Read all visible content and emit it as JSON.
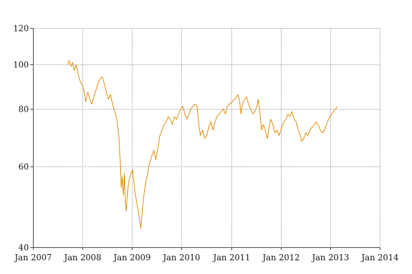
{
  "chart_data": {
    "type": "line",
    "title": "",
    "xlabel": "",
    "ylabel": "",
    "y_scale": "log",
    "grid": true,
    "line_color": "#e08a00",
    "xlim": [
      "2007-01-01",
      "2014-01-01"
    ],
    "ylim": [
      40,
      120
    ],
    "x_ticks": [
      {
        "label": "Jan 2007",
        "date": "2007-01-01"
      },
      {
        "label": "Jan 2008",
        "date": "2008-01-01"
      },
      {
        "label": "Jan 2009",
        "date": "2009-01-01"
      },
      {
        "label": "Jan 2010",
        "date": "2010-01-01"
      },
      {
        "label": "Jan 2011",
        "date": "2011-01-01"
      },
      {
        "label": "Jan 2012",
        "date": "2012-01-01"
      },
      {
        "label": "Jan 2013",
        "date": "2013-01-01"
      },
      {
        "label": "Jan 2014",
        "date": "2014-01-01"
      }
    ],
    "y_ticks": [
      {
        "label": "40",
        "value": 40
      },
      {
        "label": "60",
        "value": 60
      },
      {
        "label": "80",
        "value": 80
      },
      {
        "label": "100",
        "value": 100
      },
      {
        "label": "120",
        "value": 120
      }
    ],
    "series": [
      {
        "points": [
          [
            "2007-09-15",
            100
          ],
          [
            "2007-09-25",
            102
          ],
          [
            "2007-10-10",
            99
          ],
          [
            "2007-10-20",
            101
          ],
          [
            "2007-11-01",
            97
          ],
          [
            "2007-11-15",
            100
          ],
          [
            "2007-12-01",
            95
          ],
          [
            "2007-12-15",
            92
          ],
          [
            "2008-01-01",
            90
          ],
          [
            "2008-01-15",
            87
          ],
          [
            "2008-01-25",
            83
          ],
          [
            "2008-02-10",
            87
          ],
          [
            "2008-02-25",
            84
          ],
          [
            "2008-03-10",
            82
          ],
          [
            "2008-03-25",
            85
          ],
          [
            "2008-04-10",
            88
          ],
          [
            "2008-04-25",
            91
          ],
          [
            "2008-05-10",
            93
          ],
          [
            "2008-05-25",
            94
          ],
          [
            "2008-06-10",
            91
          ],
          [
            "2008-06-25",
            87
          ],
          [
            "2008-07-10",
            84
          ],
          [
            "2008-07-25",
            86
          ],
          [
            "2008-08-10",
            82
          ],
          [
            "2008-08-25",
            79
          ],
          [
            "2008-09-10",
            76
          ],
          [
            "2008-09-25",
            70
          ],
          [
            "2008-10-05",
            62
          ],
          [
            "2008-10-12",
            54
          ],
          [
            "2008-10-20",
            57
          ],
          [
            "2008-10-28",
            52
          ],
          [
            "2008-11-05",
            58
          ],
          [
            "2008-11-12",
            50
          ],
          [
            "2008-11-20",
            48
          ],
          [
            "2008-11-28",
            53
          ],
          [
            "2008-12-10",
            56
          ],
          [
            "2008-12-25",
            58
          ],
          [
            "2009-01-05",
            59
          ],
          [
            "2009-01-15",
            55
          ],
          [
            "2009-01-25",
            52
          ],
          [
            "2009-02-05",
            50
          ],
          [
            "2009-02-15",
            48
          ],
          [
            "2009-02-25",
            46
          ],
          [
            "2009-03-06",
            44
          ],
          [
            "2009-03-15",
            47
          ],
          [
            "2009-03-25",
            51
          ],
          [
            "2009-04-10",
            55
          ],
          [
            "2009-04-25",
            58
          ],
          [
            "2009-05-10",
            61
          ],
          [
            "2009-05-25",
            63
          ],
          [
            "2009-06-10",
            65
          ],
          [
            "2009-06-25",
            62
          ],
          [
            "2009-07-10",
            66
          ],
          [
            "2009-07-25",
            70
          ],
          [
            "2009-08-10",
            72
          ],
          [
            "2009-08-25",
            74
          ],
          [
            "2009-09-10",
            75
          ],
          [
            "2009-09-25",
            77
          ],
          [
            "2009-10-10",
            76
          ],
          [
            "2009-10-25",
            74
          ],
          [
            "2009-11-10",
            77
          ],
          [
            "2009-11-25",
            76
          ],
          [
            "2009-12-10",
            78
          ],
          [
            "2009-12-25",
            80
          ],
          [
            "2010-01-10",
            81
          ],
          [
            "2010-01-25",
            78
          ],
          [
            "2010-02-10",
            76
          ],
          [
            "2010-02-25",
            78
          ],
          [
            "2010-03-10",
            80
          ],
          [
            "2010-03-25",
            81
          ],
          [
            "2010-04-10",
            82
          ],
          [
            "2010-04-25",
            81
          ],
          [
            "2010-05-08",
            74
          ],
          [
            "2010-05-20",
            70
          ],
          [
            "2010-06-05",
            72
          ],
          [
            "2010-06-20",
            69
          ],
          [
            "2010-07-05",
            70
          ],
          [
            "2010-07-20",
            73
          ],
          [
            "2010-08-05",
            75
          ],
          [
            "2010-08-20",
            72
          ],
          [
            "2010-09-05",
            75
          ],
          [
            "2010-09-20",
            77
          ],
          [
            "2010-10-05",
            78
          ],
          [
            "2010-10-20",
            79
          ],
          [
            "2010-11-05",
            80
          ],
          [
            "2010-11-20",
            78
          ],
          [
            "2010-12-05",
            81
          ],
          [
            "2010-12-20",
            82
          ],
          [
            "2011-01-10",
            83
          ],
          [
            "2011-01-25",
            84
          ],
          [
            "2011-02-10",
            85
          ],
          [
            "2011-02-20",
            86
          ],
          [
            "2011-03-05",
            83
          ],
          [
            "2011-03-15",
            78
          ],
          [
            "2011-03-25",
            82
          ],
          [
            "2011-04-10",
            84
          ],
          [
            "2011-04-25",
            85
          ],
          [
            "2011-05-10",
            82
          ],
          [
            "2011-05-25",
            80
          ],
          [
            "2011-06-10",
            78
          ],
          [
            "2011-06-25",
            79
          ],
          [
            "2011-07-10",
            81
          ],
          [
            "2011-07-20",
            84
          ],
          [
            "2011-08-05",
            77
          ],
          [
            "2011-08-12",
            72
          ],
          [
            "2011-08-25",
            74
          ],
          [
            "2011-09-10",
            72
          ],
          [
            "2011-09-25",
            69
          ],
          [
            "2011-10-05",
            72
          ],
          [
            "2011-10-20",
            76
          ],
          [
            "2011-11-05",
            74
          ],
          [
            "2011-11-20",
            71
          ],
          [
            "2011-12-05",
            72
          ],
          [
            "2011-12-20",
            70
          ],
          [
            "2012-01-10",
            73
          ],
          [
            "2012-01-25",
            75
          ],
          [
            "2012-02-10",
            76
          ],
          [
            "2012-02-25",
            78
          ],
          [
            "2012-03-10",
            77
          ],
          [
            "2012-03-25",
            79
          ],
          [
            "2012-04-10",
            76
          ],
          [
            "2012-04-25",
            75
          ],
          [
            "2012-05-10",
            72
          ],
          [
            "2012-05-25",
            70
          ],
          [
            "2012-06-05",
            68
          ],
          [
            "2012-06-20",
            69
          ],
          [
            "2012-07-05",
            71
          ],
          [
            "2012-07-20",
            70
          ],
          [
            "2012-08-05",
            72
          ],
          [
            "2012-08-20",
            73
          ],
          [
            "2012-09-05",
            74
          ],
          [
            "2012-09-20",
            75
          ],
          [
            "2012-10-05",
            74
          ],
          [
            "2012-10-20",
            72
          ],
          [
            "2012-11-05",
            71
          ],
          [
            "2012-11-20",
            72
          ],
          [
            "2012-12-05",
            74
          ],
          [
            "2012-12-20",
            76
          ],
          [
            "2013-01-10",
            78
          ],
          [
            "2013-01-25",
            79
          ],
          [
            "2013-02-10",
            80
          ],
          [
            "2013-02-20",
            81
          ]
        ]
      }
    ]
  }
}
